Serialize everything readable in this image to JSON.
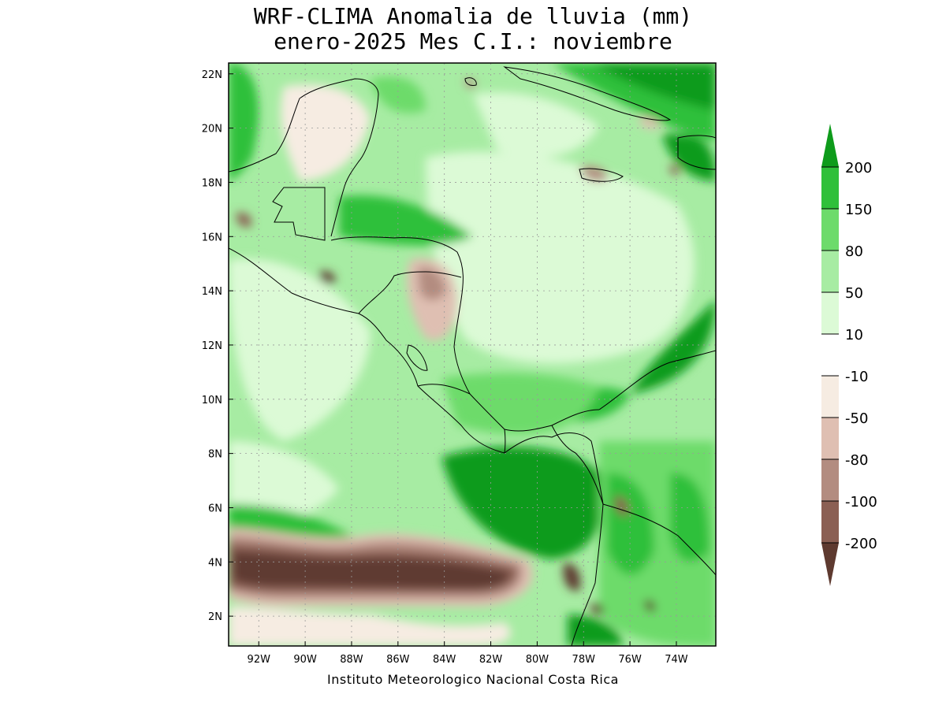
{
  "title": {
    "line1": "WRF-CLIMA Anomalia de lluvia (mm)",
    "line2": "enero-2025 Mes C.I.: noviembre"
  },
  "credit": "Instituto Meteorologico Nacional Costa Rica",
  "map": {
    "lon_range": [
      -93.3,
      -72.3
    ],
    "lat_range": [
      0.9,
      22.4
    ],
    "lon_ticks": [
      {
        "value": -92,
        "label": "92W"
      },
      {
        "value": -90,
        "label": "90W"
      },
      {
        "value": -88,
        "label": "88W"
      },
      {
        "value": -86,
        "label": "86W"
      },
      {
        "value": -84,
        "label": "84W"
      },
      {
        "value": -82,
        "label": "82W"
      },
      {
        "value": -80,
        "label": "80W"
      },
      {
        "value": -78,
        "label": "78W"
      },
      {
        "value": -76,
        "label": "76W"
      },
      {
        "value": -74,
        "label": "74W"
      }
    ],
    "lat_ticks": [
      {
        "value": 2,
        "label": "2N"
      },
      {
        "value": 4,
        "label": "4N"
      },
      {
        "value": 6,
        "label": "6N"
      },
      {
        "value": 8,
        "label": "8N"
      },
      {
        "value": 10,
        "label": "10N"
      },
      {
        "value": 12,
        "label": "12N"
      },
      {
        "value": 14,
        "label": "14N"
      },
      {
        "value": 16,
        "label": "16N"
      },
      {
        "value": 18,
        "label": "18N"
      },
      {
        "value": 20,
        "label": "20N"
      },
      {
        "value": 22,
        "label": "22N"
      }
    ],
    "grid": true
  },
  "legend": {
    "labels": [
      "200",
      "150",
      "80",
      "50",
      "10",
      "-10",
      "-50",
      "-80",
      "-100",
      "-200"
    ],
    "colors": [
      "#0e9b1b",
      "#2fc03a",
      "#6ddb6b",
      "#a7eca3",
      "#dcfad6",
      "#ffffff",
      "#f6ece2",
      "#dfbfb2",
      "#b38c80",
      "#8b5f53",
      "#5e3a30"
    ],
    "top_arrow_color": "#0e9b1b",
    "bottom_arrow_color": "#5e3a30"
  },
  "colors": {
    "strong_wet": "#0e9b1b",
    "wet": "#2fc03a",
    "moderate_wet": "#6ddb6b",
    "light_wet": "#a7eca3",
    "slight_wet": "#dcfad6",
    "neutral": "#ffffff",
    "slight_dry": "#f6ece2",
    "light_dry": "#dfbfb2",
    "moderate_dry": "#b38c80",
    "dry": "#8b5f53",
    "strong_dry": "#5e3a30"
  }
}
